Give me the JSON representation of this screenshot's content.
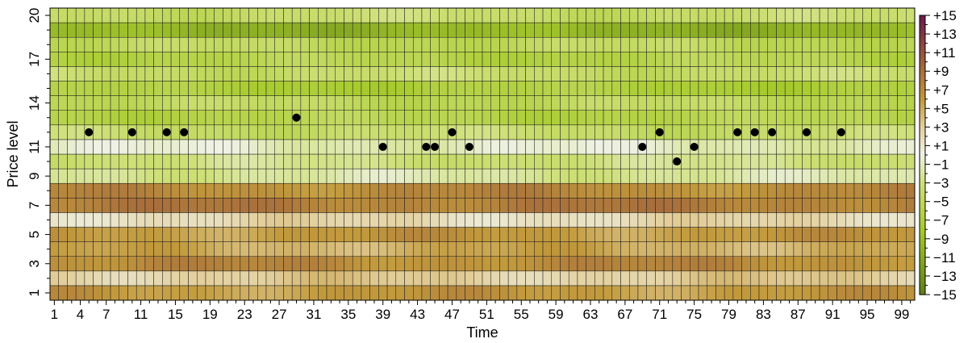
{
  "chart_data": {
    "type": "heatmap",
    "title": "",
    "xlabel": "Time",
    "ylabel": "Price level",
    "x_range": [
      1,
      100
    ],
    "y_range": [
      1,
      20
    ],
    "xtick_labels": [
      "1",
      "4",
      "7",
      "11",
      "15",
      "19",
      "23",
      "27",
      "31",
      "35",
      "39",
      "43",
      "47",
      "51",
      "55",
      "59",
      "63",
      "67",
      "71",
      "75",
      "79",
      "83",
      "87",
      "91",
      "95",
      "99"
    ],
    "ytick_labels": [
      "1",
      "3",
      "5",
      "7",
      "9",
      "11",
      "14",
      "17",
      "20"
    ],
    "legend": {
      "placement": "right",
      "min": -15,
      "max": 15,
      "labels": [
        "+15",
        "+13",
        "+11",
        "+9",
        "+7",
        "+5",
        "+3",
        "+1",
        "−1",
        "−3",
        "−5",
        "−7",
        "−9",
        "−11",
        "−13",
        "−15"
      ],
      "colors": {
        "negative_extreme": "#5e7f16",
        "negative_mid": "#a8cb2e",
        "negative_light": "#cfe07a",
        "neutral": "#eef1e4",
        "positive_light": "#e3cf9c",
        "positive_mid": "#c29a3c",
        "positive_dark": "#a9703c",
        "positive_extreme": "#6b1a4a"
      }
    },
    "row_base_values": {
      "1": 6,
      "2": 3,
      "3": 7,
      "4": 5,
      "5": 6,
      "6": 2,
      "7": 8,
      "8": 7,
      "9": -2,
      "10": -3,
      "11": -1,
      "12": -4,
      "13": -6,
      "14": -5,
      "15": -7,
      "16": -4,
      "17": -6,
      "18": -5,
      "19": -10,
      "20": -4
    },
    "points": [
      {
        "x": 5,
        "y": 12
      },
      {
        "x": 10,
        "y": 12
      },
      {
        "x": 14,
        "y": 12
      },
      {
        "x": 16,
        "y": 12
      },
      {
        "x": 29,
        "y": 13
      },
      {
        "x": 39,
        "y": 11
      },
      {
        "x": 44,
        "y": 11
      },
      {
        "x": 45,
        "y": 11
      },
      {
        "x": 47,
        "y": 12
      },
      {
        "x": 49,
        "y": 11
      },
      {
        "x": 69,
        "y": 11
      },
      {
        "x": 71,
        "y": 12
      },
      {
        "x": 73,
        "y": 10
      },
      {
        "x": 75,
        "y": 11
      },
      {
        "x": 80,
        "y": 12
      },
      {
        "x": 82,
        "y": 12
      },
      {
        "x": 84,
        "y": 12
      },
      {
        "x": 88,
        "y": 12
      },
      {
        "x": 92,
        "y": 12
      }
    ],
    "grid": true
  }
}
